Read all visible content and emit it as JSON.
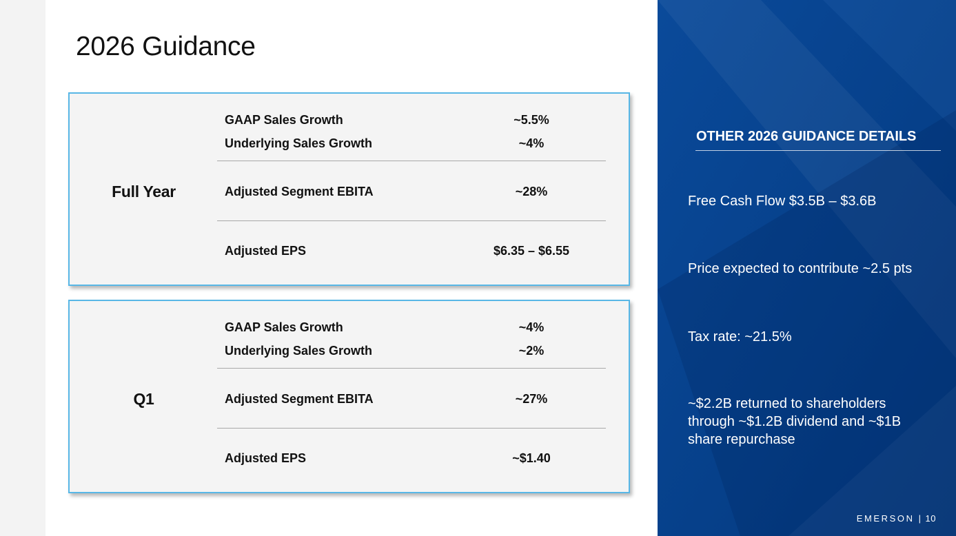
{
  "title": "2026 Guidance",
  "full_year": {
    "label": "Full Year",
    "metrics": [
      {
        "name": "GAAP Sales Growth",
        "value": "~5.5%"
      },
      {
        "name": "Underlying Sales Growth",
        "value": "~4%"
      },
      {
        "name": "Adjusted Segment EBITA",
        "value": "~28%"
      },
      {
        "name": "Adjusted EPS",
        "value": "$6.35 – $6.55"
      }
    ]
  },
  "q1": {
    "label": "Q1",
    "metrics": [
      {
        "name": "GAAP Sales Growth",
        "value": "~4%"
      },
      {
        "name": "Underlying Sales Growth",
        "value": "~2%"
      },
      {
        "name": "Adjusted Segment EBITA",
        "value": "~27%"
      },
      {
        "name": "Adjusted EPS",
        "value": "~$1.40"
      }
    ]
  },
  "other_details": {
    "heading": "OTHER 2026 GUIDANCE DETAILS",
    "items": [
      "Free Cash Flow $3.5B – $3.6B",
      "Price expected to contribute ~2.5 pts",
      "Tax rate: ~21.5%",
      "~$2.2B returned to shareholders through ~$1.2B dividend and ~$1B share repurchase"
    ]
  },
  "footer": {
    "brand": "EMERSON",
    "separator": "|",
    "page_number": "10"
  },
  "colors": {
    "panel_blue": "#03387d",
    "box_border": "#58b7e6",
    "box_fill": "#f4f4f4"
  }
}
